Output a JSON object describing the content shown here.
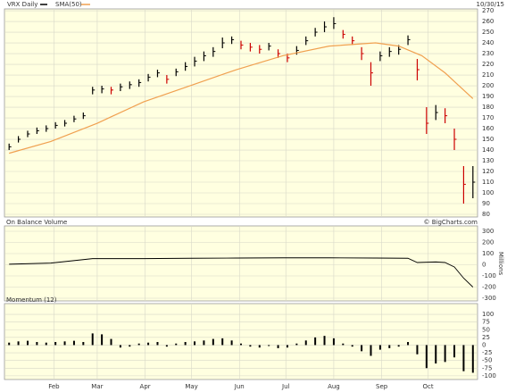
{
  "chart_data": [
    {
      "type": "ohlc",
      "title": "VRX Daily",
      "date": "10/30/15",
      "x": [
        3,
        9,
        15,
        21,
        27,
        33,
        39,
        45,
        51,
        57,
        63,
        69,
        75,
        81,
        87,
        93,
        99,
        105,
        111,
        117,
        123,
        129,
        135,
        141,
        147,
        153,
        159,
        165,
        171,
        177,
        183,
        189,
        195,
        201,
        207,
        213,
        219,
        225,
        231,
        237,
        243,
        249,
        255,
        261,
        267,
        273,
        279,
        285,
        291,
        297,
        303
      ],
      "high": [
        146,
        153,
        158,
        161,
        163,
        166,
        168,
        172,
        175,
        199,
        200,
        199,
        202,
        204,
        206,
        211,
        215,
        210,
        216,
        222,
        227,
        232,
        236,
        245,
        246,
        242,
        240,
        238,
        240,
        234,
        230,
        237,
        246,
        254,
        260,
        264,
        252,
        246,
        236,
        222,
        232,
        236,
        238,
        247,
        225,
        180,
        182,
        179,
        160,
        125,
        125
      ],
      "low": [
        140,
        147,
        152,
        155,
        157,
        160,
        162,
        166,
        169,
        192,
        193,
        192,
        195,
        197,
        199,
        204,
        208,
        202,
        209,
        214,
        218,
        223,
        227,
        235,
        239,
        234,
        232,
        230,
        233,
        226,
        222,
        229,
        238,
        246,
        250,
        253,
        244,
        238,
        224,
        200,
        223,
        227,
        229,
        238,
        205,
        155,
        168,
        165,
        140,
        90,
        95
      ],
      "close": [
        143,
        150,
        155,
        158,
        160,
        163,
        165,
        169,
        172,
        196,
        197,
        196,
        199,
        201,
        203,
        208,
        212,
        206,
        213,
        218,
        223,
        228,
        232,
        240,
        243,
        238,
        236,
        234,
        237,
        230,
        226,
        233,
        242,
        250,
        255,
        258,
        248,
        242,
        230,
        212,
        228,
        232,
        234,
        243,
        215,
        165,
        175,
        172,
        150,
        108,
        110
      ],
      "series_name": "VRX Daily",
      "up_color": "#000000",
      "down_color": "#cc0000",
      "sma": {
        "name": "SMA(50)",
        "color": "#f0a050",
        "x": [
          3,
          30,
          60,
          90,
          120,
          150,
          180,
          210,
          240,
          255,
          270,
          285,
          303
        ],
        "values": [
          137,
          148,
          165,
          185,
          200,
          215,
          228,
          237,
          240,
          237,
          228,
          212,
          188
        ]
      },
      "xlim": [
        0,
        306
      ],
      "ylim": [
        77.5,
        271.7
      ],
      "yticks": [
        80,
        90,
        100,
        110,
        120,
        130,
        140,
        150,
        160,
        170,
        180,
        190,
        200,
        210,
        220,
        230,
        240,
        250,
        260,
        270
      ]
    },
    {
      "type": "line",
      "title": "On Balance Volume",
      "credit": "© BigCharts.com",
      "y_label": "Millions",
      "color": "#000000",
      "x": [
        3,
        30,
        57,
        90,
        120,
        150,
        180,
        210,
        240,
        261,
        267,
        279,
        285,
        291,
        297,
        303
      ],
      "values": [
        5,
        15,
        55,
        55,
        58,
        60,
        62,
        62,
        60,
        58,
        20,
        25,
        20,
        -20,
        -120,
        -200
      ],
      "xlim": [
        0,
        306
      ],
      "ylim": [
        -324,
        348
      ],
      "yticks": [
        300,
        200,
        100,
        0,
        -100,
        -200,
        -300
      ]
    },
    {
      "type": "bar",
      "title": "Momentum (12)",
      "color": "#000000",
      "x": [
        3,
        9,
        15,
        21,
        27,
        33,
        39,
        45,
        51,
        57,
        63,
        69,
        75,
        81,
        87,
        93,
        99,
        105,
        111,
        117,
        123,
        129,
        135,
        141,
        147,
        153,
        159,
        165,
        171,
        177,
        183,
        189,
        195,
        201,
        207,
        213,
        219,
        225,
        231,
        237,
        243,
        249,
        255,
        261,
        267,
        273,
        279,
        285,
        291,
        297,
        303
      ],
      "values": [
        8,
        12,
        14,
        10,
        8,
        10,
        12,
        14,
        10,
        38,
        35,
        20,
        -8,
        -5,
        5,
        8,
        10,
        -5,
        5,
        10,
        12,
        15,
        20,
        22,
        15,
        5,
        -5,
        -8,
        -3,
        -10,
        -8,
        5,
        15,
        25,
        30,
        22,
        5,
        -5,
        -20,
        -35,
        -15,
        -10,
        -5,
        10,
        -30,
        -75,
        -60,
        -55,
        -40,
        -85,
        -90
      ],
      "xlim": [
        0,
        306
      ],
      "ylim": [
        -112,
        135
      ],
      "yticks": [
        100,
        75,
        50,
        25,
        0,
        -25,
        -50,
        -75,
        -100
      ],
      "xticks": [
        {
          "value": 32,
          "label": "Feb"
        },
        {
          "value": 60,
          "label": "Mar"
        },
        {
          "value": 91,
          "label": "Apr"
        },
        {
          "value": 121,
          "label": "May"
        },
        {
          "value": 152,
          "label": "Jun"
        },
        {
          "value": 182,
          "label": "Jul"
        },
        {
          "value": 213,
          "label": "Aug"
        },
        {
          "value": 244,
          "label": "Sep"
        },
        {
          "value": 274,
          "label": "Oct"
        }
      ]
    }
  ]
}
